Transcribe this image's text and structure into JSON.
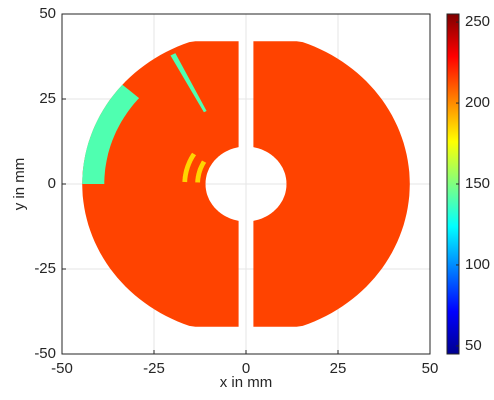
{
  "chart_data": {
    "type": "heatmap",
    "xlabel": "x in mm",
    "ylabel": "y in mm",
    "xlim": [
      -50,
      50
    ],
    "ylim": [
      -50,
      50
    ],
    "xticks": [
      -50,
      -25,
      0,
      25,
      50
    ],
    "yticks": [
      -50,
      -25,
      0,
      25,
      50
    ],
    "clim": [
      45,
      255
    ],
    "cticks": [
      50,
      100,
      150,
      200,
      250
    ],
    "colormap": "jet",
    "grid": true,
    "values": [
      215,
      140,
      185
    ]
  }
}
